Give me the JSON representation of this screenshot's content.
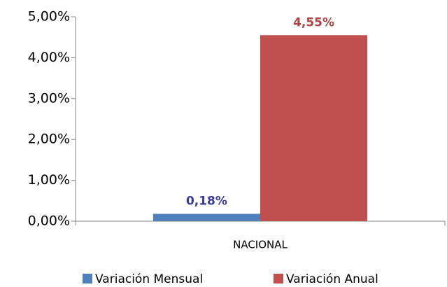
{
  "chart_data": {
    "type": "bar",
    "categories": [
      "NACIONAL"
    ],
    "series": [
      {
        "name": "Variación Mensual",
        "color": "#4f81bd",
        "label_color": "#3b3b9b",
        "values": [
          0.18
        ],
        "value_labels": [
          "0,18%"
        ]
      },
      {
        "name": "Variación Anual",
        "color": "#c0504d",
        "label_color": "#a94442",
        "values": [
          4.55
        ],
        "value_labels": [
          "4,55%"
        ]
      }
    ],
    "ylim": [
      0,
      5
    ],
    "yticks": [
      {
        "value": 0,
        "label": "0,00%"
      },
      {
        "value": 1,
        "label": "1,00%"
      },
      {
        "value": 2,
        "label": "2,00%"
      },
      {
        "value": 3,
        "label": "3,00%"
      },
      {
        "value": 4,
        "label": "4,00%"
      },
      {
        "value": 5,
        "label": "5,00%"
      }
    ],
    "grid": false,
    "legend": "bottom"
  }
}
